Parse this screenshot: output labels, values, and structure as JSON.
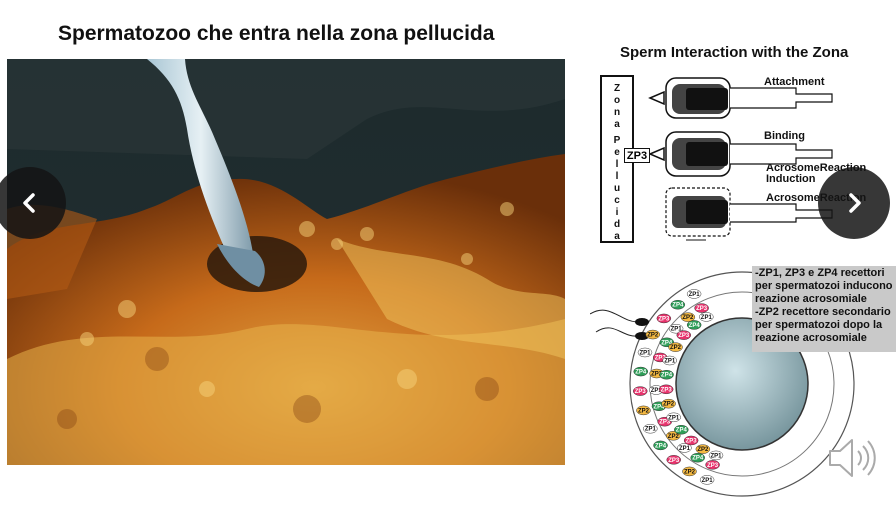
{
  "slide": {
    "title": "Spermatozoo che entra nella zona pellucida"
  },
  "diagram": {
    "title": "Sperm Interaction with the Zona",
    "zona_letters": [
      "Z",
      "o",
      "n",
      "a",
      "",
      "P",
      "e",
      "l",
      "l",
      "u",
      "c",
      "i",
      "d",
      "a"
    ],
    "stages": {
      "attachment": "Attachment",
      "binding": "Binding",
      "induction_1": "AcrosomeReaction",
      "induction_2": "Induction",
      "reaction": "AcrosomeReaction"
    },
    "zp3_label": "ZP3"
  },
  "oocyte": {
    "glycoprotein_labels": [
      "ZP1",
      "ZP2",
      "ZP3",
      "ZP4"
    ]
  },
  "info_box": {
    "line1": "-ZP1, ZP3 e ZP4 recettori",
    "line2": "per spermatozoi inducono",
    "line3": "reazione acrosomiale",
    "line4": "-ZP2 recettore secondario",
    "line5": "per spermatozoi dopo la",
    "line6": "reazione acrosomiale"
  },
  "icons": {
    "prev": "chevron-left-icon",
    "next": "chevron-right-icon",
    "audio": "speaker-icon"
  },
  "colors": {
    "nav_bg": "#141414",
    "info_bg": "#c9c9c9"
  }
}
